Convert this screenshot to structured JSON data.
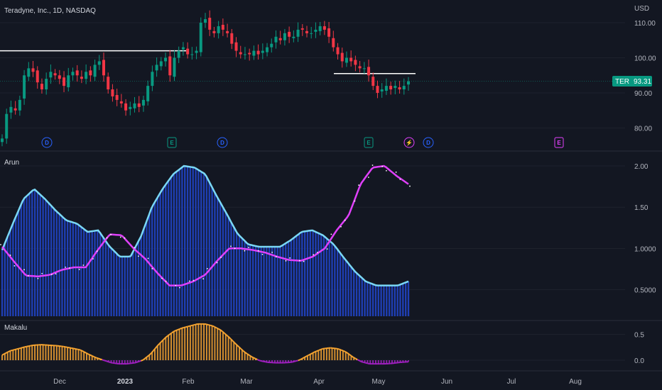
{
  "header": {
    "title": "Teradyne, Inc., 1D, NASDAQ",
    "currency": "USD"
  },
  "price_tag": {
    "symbol": "TER",
    "value": "93.31",
    "color": "#089981"
  },
  "panes": {
    "price": {
      "yticks": [
        "110.00",
        "100.00",
        "90.00",
        "80.00"
      ]
    },
    "arun": {
      "label": "Arun",
      "yticks": [
        "2.00",
        "1.50",
        "1.0000",
        "0.5000"
      ]
    },
    "makalu": {
      "label": "Makalu",
      "yticks": [
        "0.5",
        "0.0"
      ]
    }
  },
  "xaxis": {
    "labels": [
      "Dec",
      "2023",
      "Feb",
      "Mar",
      "Apr",
      "May",
      "Jun",
      "Jul",
      "Aug"
    ]
  },
  "events": [
    {
      "type": "dividend",
      "glyph": "D",
      "color": "#2962ff"
    },
    {
      "type": "earnings",
      "glyph": "E",
      "color": "#089981"
    },
    {
      "type": "dividend",
      "glyph": "D",
      "color": "#2962ff"
    },
    {
      "type": "earnings",
      "glyph": "E",
      "color": "#089981"
    },
    {
      "type": "split",
      "glyph": "⚡",
      "color": "#e040fb"
    },
    {
      "type": "dividend",
      "glyph": "D",
      "color": "#2962ff"
    },
    {
      "type": "earnings",
      "glyph": "E",
      "color": "#e040fb"
    }
  ],
  "colors": {
    "background": "#131722",
    "up": "#089981",
    "down": "#f23645",
    "arun_cyan": "#7ad8f5",
    "arun_magenta": "#e040fb",
    "arun_hist": "#1f3fb5",
    "makalu_pos": "#f7a531",
    "makalu_neg": "#a020c0",
    "grid": "#2a2e39"
  },
  "chart_data": [
    {
      "type": "candlestick",
      "ticker": "TER",
      "ylim": [
        75,
        115
      ],
      "levels": [
        102,
        95.5
      ],
      "last": 93.31,
      "closes": [
        77,
        84,
        86,
        85,
        88,
        95,
        97,
        96,
        93,
        91,
        94,
        96,
        95,
        94,
        92,
        95,
        96,
        95,
        94,
        96,
        95,
        98,
        99,
        95,
        91,
        89,
        88,
        87,
        85,
        86,
        87,
        86,
        88,
        92,
        96,
        98,
        99,
        100,
        95,
        100,
        102,
        103,
        101,
        101,
        102,
        110,
        111,
        108,
        107,
        109,
        108,
        107,
        104,
        102,
        101,
        101,
        101,
        102,
        101,
        102,
        103,
        104,
        106,
        105,
        107,
        106,
        106,
        108,
        108,
        107,
        107,
        108,
        109,
        108,
        106,
        103,
        101,
        99,
        100,
        99,
        98,
        97,
        97,
        95,
        92,
        90,
        91,
        92,
        91,
        92,
        91,
        92,
        93.31
      ]
    },
    {
      "type": "line",
      "name": "Arun",
      "ylim": [
        0.15,
        2.05
      ],
      "cyan": [
        0.98,
        1.3,
        1.6,
        1.72,
        1.6,
        1.46,
        1.34,
        1.3,
        1.2,
        1.22,
        1.03,
        0.9,
        0.9,
        1.15,
        1.5,
        1.72,
        1.9,
        2.0,
        1.98,
        1.9,
        1.65,
        1.42,
        1.18,
        1.05,
        1.02,
        1.02,
        1.02,
        1.1,
        1.2,
        1.22,
        1.16,
        1.05,
        0.88,
        0.72,
        0.6,
        0.55,
        0.55,
        0.55,
        0.6
      ],
      "magenta": [
        1.02,
        0.84,
        0.67,
        0.66,
        0.68,
        0.74,
        0.77,
        0.77,
        0.98,
        1.17,
        1.16,
        1.0,
        0.87,
        0.7,
        0.55,
        0.55,
        0.6,
        0.68,
        0.85,
        1.0,
        1.0,
        0.98,
        0.95,
        0.9,
        0.86,
        0.85,
        0.9,
        1.0,
        1.22,
        1.4,
        1.78,
        1.98,
        2.0,
        1.88,
        1.78
      ]
    },
    {
      "type": "bar",
      "name": "Makalu",
      "ylim": [
        -0.12,
        0.75
      ],
      "values": [
        0.1,
        0.18,
        0.22,
        0.26,
        0.29,
        0.3,
        0.29,
        0.28,
        0.26,
        0.23,
        0.2,
        0.12,
        0.05,
        0.0,
        -0.05,
        -0.07,
        -0.07,
        -0.05,
        0.0,
        0.12,
        0.3,
        0.45,
        0.56,
        0.62,
        0.66,
        0.7,
        0.7,
        0.66,
        0.58,
        0.45,
        0.3,
        0.16,
        0.06,
        -0.01,
        -0.04,
        -0.05,
        -0.05,
        -0.04,
        0.0,
        0.08,
        0.16,
        0.22,
        0.24,
        0.22,
        0.16,
        0.05,
        -0.03,
        -0.07,
        -0.07,
        -0.07,
        -0.06,
        -0.04,
        -0.03
      ]
    }
  ]
}
